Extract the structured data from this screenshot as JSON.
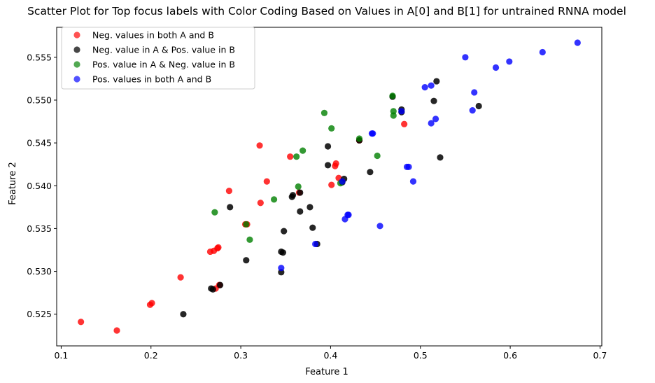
{
  "chart_data": {
    "type": "scatter",
    "title": "Scatter Plot for Top focus labels with Color Coding Based on Values in A[0] and B[1] for untrained RNNA model",
    "xlabel": "Feature 1",
    "ylabel": "Feature 2",
    "xlim": [
      0.095,
      0.702
    ],
    "ylim": [
      0.5213,
      0.5585
    ],
    "xticks": [
      0.1,
      0.2,
      0.3,
      0.4,
      0.5,
      0.6,
      0.7
    ],
    "xtick_labels": [
      "0.1",
      "0.2",
      "0.3",
      "0.4",
      "0.5",
      "0.6",
      "0.7"
    ],
    "yticks": [
      0.525,
      0.53,
      0.535,
      0.54,
      0.545,
      0.55,
      0.555
    ],
    "ytick_labels": [
      "0.525",
      "0.530",
      "0.535",
      "0.540",
      "0.545",
      "0.550",
      "0.555"
    ],
    "grid": false,
    "legend_position": "top-left",
    "series": [
      {
        "name": "Neg. values in both A and B",
        "color": "#ff0000",
        "alpha": 0.8,
        "points": [
          [
            0.122,
            0.5241
          ],
          [
            0.162,
            0.5231
          ],
          [
            0.199,
            0.5261
          ],
          [
            0.201,
            0.5263
          ],
          [
            0.233,
            0.5293
          ],
          [
            0.266,
            0.5323
          ],
          [
            0.27,
            0.5324
          ],
          [
            0.274,
            0.5327
          ],
          [
            0.275,
            0.5328
          ],
          [
            0.272,
            0.528
          ],
          [
            0.276,
            0.5284
          ],
          [
            0.287,
            0.5394
          ],
          [
            0.322,
            0.538
          ],
          [
            0.321,
            0.5447
          ],
          [
            0.329,
            0.5405
          ],
          [
            0.305,
            0.5355
          ],
          [
            0.307,
            0.5355
          ],
          [
            0.355,
            0.5434
          ],
          [
            0.365,
            0.5392
          ],
          [
            0.401,
            0.5401
          ],
          [
            0.405,
            0.5423
          ],
          [
            0.406,
            0.5426
          ],
          [
            0.409,
            0.5409
          ],
          [
            0.432,
            0.5453
          ],
          [
            0.482,
            0.5472
          ]
        ]
      },
      {
        "name": "Neg. value in A & Pos. value in B",
        "color": "#000000",
        "alpha": 0.85,
        "points": [
          [
            0.236,
            0.525
          ],
          [
            0.267,
            0.528
          ],
          [
            0.269,
            0.5279
          ],
          [
            0.277,
            0.5284
          ],
          [
            0.288,
            0.5375
          ],
          [
            0.306,
            0.5313
          ],
          [
            0.345,
            0.5299
          ],
          [
            0.345,
            0.5323
          ],
          [
            0.347,
            0.5322
          ],
          [
            0.348,
            0.5347
          ],
          [
            0.357,
            0.5387
          ],
          [
            0.358,
            0.5389
          ],
          [
            0.366,
            0.5392
          ],
          [
            0.366,
            0.537
          ],
          [
            0.377,
            0.5375
          ],
          [
            0.38,
            0.5351
          ],
          [
            0.385,
            0.5332
          ],
          [
            0.397,
            0.5446
          ],
          [
            0.397,
            0.5424
          ],
          [
            0.413,
            0.5404
          ],
          [
            0.415,
            0.5408
          ],
          [
            0.432,
            0.5453
          ],
          [
            0.444,
            0.5416
          ],
          [
            0.469,
            0.5504
          ],
          [
            0.479,
            0.5489
          ],
          [
            0.479,
            0.5486
          ],
          [
            0.515,
            0.5499
          ],
          [
            0.518,
            0.5522
          ],
          [
            0.522,
            0.5433
          ],
          [
            0.565,
            0.5493
          ]
        ]
      },
      {
        "name": "Pos. value in A & Neg. value in B",
        "color": "#008000",
        "alpha": 0.8,
        "points": [
          [
            0.271,
            0.5369
          ],
          [
            0.306,
            0.5355
          ],
          [
            0.31,
            0.5337
          ],
          [
            0.337,
            0.5384
          ],
          [
            0.362,
            0.5434
          ],
          [
            0.364,
            0.5399
          ],
          [
            0.369,
            0.5441
          ],
          [
            0.393,
            0.5485
          ],
          [
            0.401,
            0.5467
          ],
          [
            0.411,
            0.5403
          ],
          [
            0.432,
            0.5455
          ],
          [
            0.452,
            0.5435
          ],
          [
            0.469,
            0.5505
          ],
          [
            0.47,
            0.5487
          ],
          [
            0.47,
            0.5482
          ]
        ]
      },
      {
        "name": "Pos. values in both A and B",
        "color": "#0000ff",
        "alpha": 0.8,
        "points": [
          [
            0.345,
            0.5304
          ],
          [
            0.383,
            0.5332
          ],
          [
            0.413,
            0.5405
          ],
          [
            0.416,
            0.5361
          ],
          [
            0.419,
            0.5366
          ],
          [
            0.42,
            0.5366
          ],
          [
            0.446,
            0.5461
          ],
          [
            0.447,
            0.5461
          ],
          [
            0.455,
            0.5353
          ],
          [
            0.479,
            0.5487
          ],
          [
            0.485,
            0.5422
          ],
          [
            0.487,
            0.5422
          ],
          [
            0.492,
            0.5405
          ],
          [
            0.505,
            0.5515
          ],
          [
            0.512,
            0.5517
          ],
          [
            0.512,
            0.5473
          ],
          [
            0.517,
            0.5478
          ],
          [
            0.55,
            0.555
          ],
          [
            0.558,
            0.5488
          ],
          [
            0.56,
            0.5509
          ],
          [
            0.584,
            0.5538
          ],
          [
            0.599,
            0.5545
          ],
          [
            0.636,
            0.5556
          ],
          [
            0.675,
            0.5567
          ]
        ]
      }
    ]
  }
}
